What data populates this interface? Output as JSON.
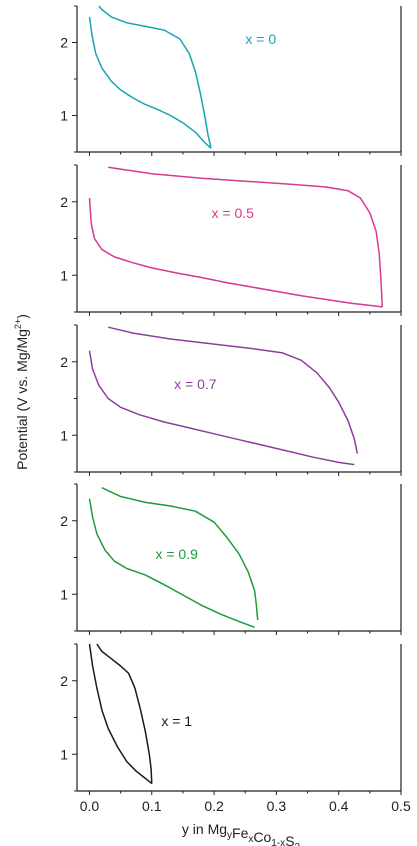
{
  "chart_data": {
    "type": "line",
    "layout": "stacked-panels",
    "ylabel": "Potential (V vs. Mg/Mg²⁺)",
    "ylabel_parts": {
      "main": "Potential (V vs. Mg/Mg",
      "sup": "2+",
      "close": ")"
    },
    "xlabel": "y in MgyFexCo1-xS2",
    "xlabel_parts": [
      {
        "t": "y in Mg",
        "s": ""
      },
      {
        "t": "y",
        "s": "sub"
      },
      {
        "t": "Fe",
        "s": ""
      },
      {
        "t": "x",
        "s": "sub"
      },
      {
        "t": "Co",
        "s": ""
      },
      {
        "t": "1-x",
        "s": "sub"
      },
      {
        "t": "S",
        "s": ""
      },
      {
        "t": "2",
        "s": "sub"
      }
    ],
    "xlim": [
      -0.02,
      0.5
    ],
    "ylim": [
      0.5,
      2.5
    ],
    "xticks": [
      0.0,
      0.1,
      0.2,
      0.3,
      0.4,
      0.5
    ],
    "xtick_labels": [
      "0.0",
      "0.1",
      "0.2",
      "0.3",
      "0.4",
      "0.5"
    ],
    "yticks": [
      1,
      2
    ],
    "ytick_labels": [
      "1",
      "2"
    ],
    "panels": [
      {
        "label": "x = 0",
        "color": "#1aa3b5",
        "label_pos": {
          "x": 0.275,
          "y": 2.05
        },
        "discharge": [
          [
            0.0,
            2.35
          ],
          [
            0.004,
            2.1
          ],
          [
            0.01,
            1.85
          ],
          [
            0.02,
            1.65
          ],
          [
            0.035,
            1.47
          ],
          [
            0.05,
            1.35
          ],
          [
            0.07,
            1.24
          ],
          [
            0.09,
            1.15
          ],
          [
            0.11,
            1.08
          ],
          [
            0.13,
            1.0
          ],
          [
            0.15,
            0.9
          ],
          [
            0.17,
            0.77
          ],
          [
            0.185,
            0.63
          ],
          [
            0.195,
            0.55
          ]
        ],
        "charge": [
          [
            0.195,
            0.55
          ],
          [
            0.19,
            0.75
          ],
          [
            0.185,
            1.0
          ],
          [
            0.178,
            1.3
          ],
          [
            0.17,
            1.6
          ],
          [
            0.16,
            1.85
          ],
          [
            0.145,
            2.05
          ],
          [
            0.12,
            2.17
          ],
          [
            0.09,
            2.22
          ],
          [
            0.06,
            2.27
          ],
          [
            0.035,
            2.35
          ],
          [
            0.02,
            2.45
          ],
          [
            0.015,
            2.5
          ]
        ]
      },
      {
        "label": "x = 0.5",
        "color": "#d63a8e",
        "label_pos": {
          "x": 0.23,
          "y": 1.85
        },
        "discharge": [
          [
            0.0,
            2.05
          ],
          [
            0.003,
            1.7
          ],
          [
            0.008,
            1.5
          ],
          [
            0.02,
            1.35
          ],
          [
            0.04,
            1.25
          ],
          [
            0.07,
            1.17
          ],
          [
            0.1,
            1.1
          ],
          [
            0.14,
            1.03
          ],
          [
            0.18,
            0.97
          ],
          [
            0.22,
            0.9
          ],
          [
            0.26,
            0.84
          ],
          [
            0.3,
            0.78
          ],
          [
            0.34,
            0.72
          ],
          [
            0.38,
            0.67
          ],
          [
            0.42,
            0.62
          ],
          [
            0.45,
            0.59
          ],
          [
            0.47,
            0.57
          ]
        ],
        "charge": [
          [
            0.47,
            0.57
          ],
          [
            0.468,
            0.9
          ],
          [
            0.465,
            1.3
          ],
          [
            0.46,
            1.6
          ],
          [
            0.45,
            1.85
          ],
          [
            0.435,
            2.05
          ],
          [
            0.415,
            2.15
          ],
          [
            0.38,
            2.2
          ],
          [
            0.32,
            2.24
          ],
          [
            0.25,
            2.28
          ],
          [
            0.18,
            2.32
          ],
          [
            0.1,
            2.38
          ],
          [
            0.03,
            2.47
          ]
        ]
      },
      {
        "label": "x = 0.7",
        "color": "#8e3d9e",
        "label_pos": {
          "x": 0.17,
          "y": 1.7
        },
        "discharge": [
          [
            0.0,
            2.15
          ],
          [
            0.005,
            1.9
          ],
          [
            0.015,
            1.68
          ],
          [
            0.03,
            1.5
          ],
          [
            0.05,
            1.38
          ],
          [
            0.08,
            1.28
          ],
          [
            0.12,
            1.18
          ],
          [
            0.16,
            1.1
          ],
          [
            0.2,
            1.02
          ],
          [
            0.24,
            0.94
          ],
          [
            0.28,
            0.86
          ],
          [
            0.32,
            0.78
          ],
          [
            0.36,
            0.7
          ],
          [
            0.4,
            0.63
          ],
          [
            0.425,
            0.6
          ]
        ],
        "charge": [
          [
            0.43,
            0.75
          ],
          [
            0.425,
            0.95
          ],
          [
            0.415,
            1.2
          ],
          [
            0.4,
            1.45
          ],
          [
            0.385,
            1.65
          ],
          [
            0.365,
            1.85
          ],
          [
            0.34,
            2.02
          ],
          [
            0.31,
            2.12
          ],
          [
            0.26,
            2.18
          ],
          [
            0.2,
            2.24
          ],
          [
            0.13,
            2.31
          ],
          [
            0.07,
            2.39
          ],
          [
            0.03,
            2.47
          ]
        ]
      },
      {
        "label": "x = 0.9",
        "color": "#1d9c3a",
        "label_pos": {
          "x": 0.14,
          "y": 1.55
        },
        "discharge": [
          [
            0.0,
            2.3
          ],
          [
            0.005,
            2.05
          ],
          [
            0.012,
            1.82
          ],
          [
            0.025,
            1.6
          ],
          [
            0.04,
            1.45
          ],
          [
            0.06,
            1.35
          ],
          [
            0.09,
            1.26
          ],
          [
            0.12,
            1.13
          ],
          [
            0.15,
            0.99
          ],
          [
            0.18,
            0.85
          ],
          [
            0.21,
            0.73
          ],
          [
            0.24,
            0.63
          ],
          [
            0.265,
            0.55
          ]
        ],
        "charge": [
          [
            0.27,
            0.65
          ],
          [
            0.268,
            0.85
          ],
          [
            0.265,
            1.05
          ],
          [
            0.255,
            1.3
          ],
          [
            0.24,
            1.55
          ],
          [
            0.22,
            1.78
          ],
          [
            0.2,
            1.98
          ],
          [
            0.17,
            2.13
          ],
          [
            0.13,
            2.2
          ],
          [
            0.09,
            2.25
          ],
          [
            0.05,
            2.33
          ],
          [
            0.02,
            2.45
          ]
        ]
      },
      {
        "label": "x = 1",
        "color": "#1a1a1a",
        "label_pos": {
          "x": 0.14,
          "y": 1.45
        },
        "discharge": [
          [
            0.0,
            2.5
          ],
          [
            0.005,
            2.2
          ],
          [
            0.012,
            1.9
          ],
          [
            0.02,
            1.6
          ],
          [
            0.03,
            1.35
          ],
          [
            0.045,
            1.1
          ],
          [
            0.06,
            0.9
          ],
          [
            0.075,
            0.77
          ],
          [
            0.09,
            0.67
          ],
          [
            0.1,
            0.6
          ]
        ],
        "charge": [
          [
            0.1,
            0.6
          ],
          [
            0.099,
            0.8
          ],
          [
            0.096,
            1.0
          ],
          [
            0.09,
            1.3
          ],
          [
            0.082,
            1.6
          ],
          [
            0.073,
            1.9
          ],
          [
            0.063,
            2.1
          ],
          [
            0.05,
            2.2
          ],
          [
            0.035,
            2.3
          ],
          [
            0.02,
            2.4
          ],
          [
            0.012,
            2.5
          ]
        ]
      }
    ]
  }
}
